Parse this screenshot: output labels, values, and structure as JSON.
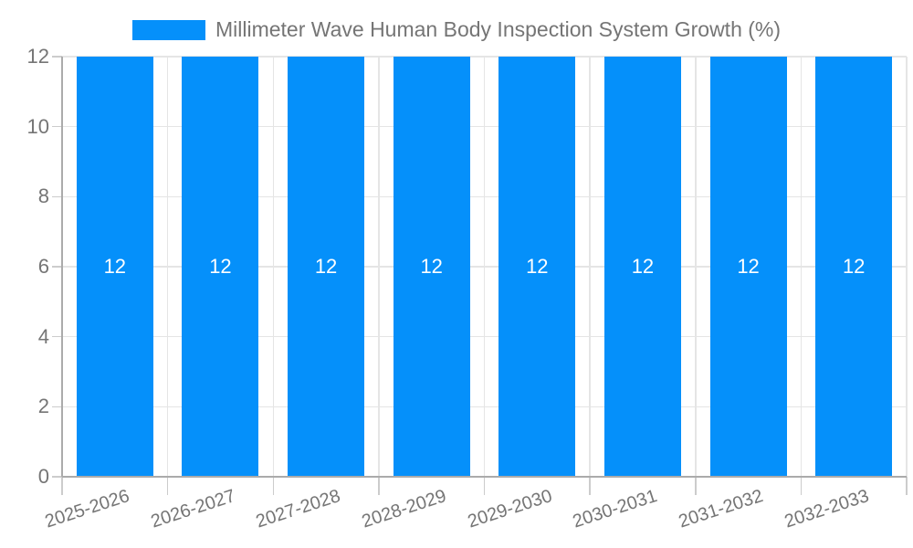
{
  "chart_data": {
    "type": "bar",
    "title": "Millimeter Wave Human Body Inspection System Growth (%)",
    "legend": {
      "label": "Millimeter Wave Human Body Inspection System Growth (%)",
      "position": "top-center"
    },
    "categories": [
      "2025-2026",
      "2026-2027",
      "2027-2028",
      "2028-2029",
      "2029-2030",
      "2030-2031",
      "2031-2032",
      "2032-2033"
    ],
    "values": [
      12,
      12,
      12,
      12,
      12,
      12,
      12,
      12
    ],
    "bar_value_labels": [
      "12",
      "12",
      "12",
      "12",
      "12",
      "12",
      "12",
      "12"
    ],
    "xlabel": "",
    "ylabel": "",
    "ylim": [
      0,
      12
    ],
    "y_ticks": [
      0,
      2,
      4,
      6,
      8,
      10,
      12
    ],
    "grid": true,
    "x_tick_rotation_deg": -18,
    "legend_position": "top-center",
    "colors": {
      "bar": "#0590fa",
      "bar_label": "#ffffff",
      "gridline": "#e5e5e5",
      "axis": "#ababab",
      "tick": "#cccccc",
      "text": "#757575",
      "background": "#ffffff"
    }
  }
}
